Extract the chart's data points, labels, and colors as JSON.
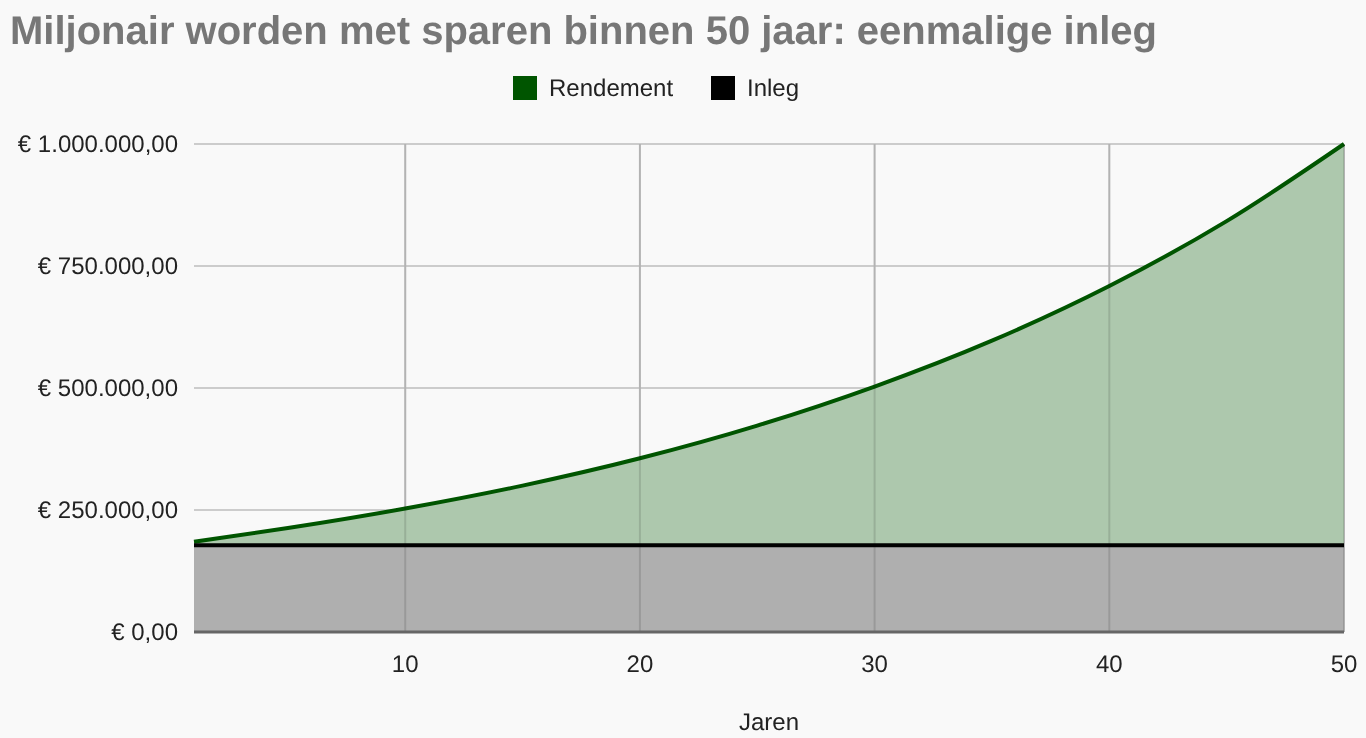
{
  "chart_data": {
    "type": "area",
    "title": "Miljonair worden met sparen binnen 50 jaar: eenmalige inleg",
    "xlabel": "Jaren",
    "x": [
      1,
      5,
      10,
      15,
      20,
      25,
      30,
      35,
      40,
      45,
      50
    ],
    "series": [
      {
        "name": "Rendement",
        "color": "#005500",
        "values": [
          185000,
          213000,
          253000,
          300000,
          356000,
          423000,
          503000,
          597000,
          709000,
          842000,
          1000000
        ]
      },
      {
        "name": "Inleg",
        "color": "#000000",
        "values": [
          178000,
          178000,
          178000,
          178000,
          178000,
          178000,
          178000,
          178000,
          178000,
          178000,
          178000
        ]
      }
    ],
    "xlim": [
      1,
      50
    ],
    "xticks": [
      10,
      20,
      30,
      40,
      50
    ],
    "ylim": [
      0,
      1000000
    ],
    "yticks": [
      {
        "value": 0,
        "label": "€ 0,00"
      },
      {
        "value": 250000,
        "label": "€ 250.000,00"
      },
      {
        "value": 500000,
        "label": "€ 500.000,00"
      },
      {
        "value": 750000,
        "label": "€ 750.000,00"
      },
      {
        "value": 1000000,
        "label": "€ 1.000.000,00"
      }
    ],
    "grid": true,
    "legend": "top"
  }
}
